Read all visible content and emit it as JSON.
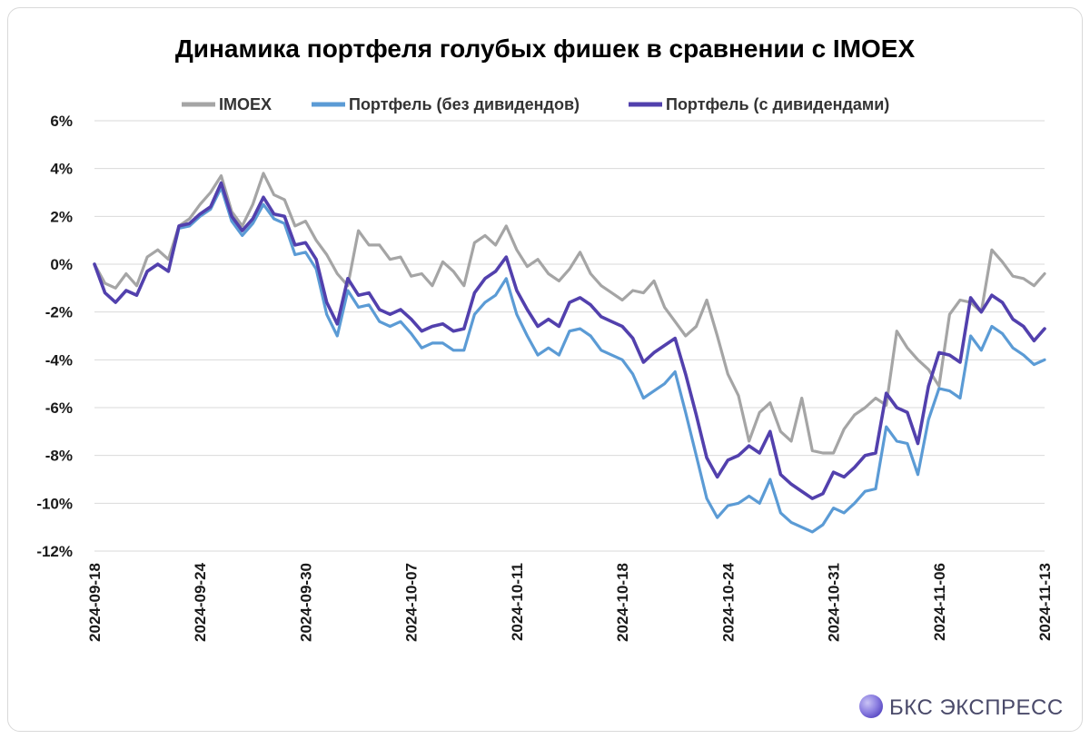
{
  "chart_data": {
    "type": "line",
    "title": "Динамика портфеля голубых фишек в сравнении с IMOEX",
    "xlabel": "",
    "ylabel": "",
    "ylim": [
      -12,
      6
    ],
    "yticks": [
      6,
      4,
      2,
      0,
      -2,
      -4,
      -6,
      -8,
      -10,
      -12
    ],
    "ytick_labels": [
      "6%",
      "4%",
      "2%",
      "0%",
      "-2%",
      "-4%",
      "-6%",
      "-8%",
      "-10%",
      "-12%"
    ],
    "xtick_labels": [
      "2024-09-18",
      "2024-09-24",
      "2024-09-30",
      "2024-10-07",
      "2024-10-11",
      "2024-10-18",
      "2024-10-24",
      "2024-10-31",
      "2024-11-06",
      "2024-11-13"
    ],
    "grid": true,
    "legend_position": "top-center",
    "series": [
      {
        "name": "IMOEX",
        "color": "#a5a5a5",
        "values": [
          0,
          -0.8,
          -1.0,
          -0.4,
          -0.9,
          0.3,
          0.6,
          0.2,
          1.6,
          1.9,
          2.5,
          3.0,
          3.7,
          2.2,
          1.6,
          2.5,
          3.8,
          2.9,
          2.7,
          1.6,
          1.8,
          1.0,
          0.4,
          -0.4,
          -0.9,
          1.4,
          0.8,
          0.8,
          0.2,
          0.3,
          -0.5,
          -0.4,
          -0.9,
          0.1,
          -0.3,
          -0.9,
          0.9,
          1.2,
          0.8,
          1.6,
          0.6,
          -0.1,
          0.2,
          -0.4,
          -0.7,
          -0.2,
          0.5,
          -0.4,
          -0.9,
          -1.2,
          -1.5,
          -1.1,
          -1.2,
          -0.7,
          -1.8,
          -2.4,
          -3.0,
          -2.6,
          -1.5,
          -3.0,
          -4.6,
          -5.5,
          -7.4,
          -6.2,
          -5.8,
          -7.0,
          -7.4,
          -5.6,
          -7.8,
          -7.9,
          -7.9,
          -6.9,
          -6.3,
          -6.0,
          -5.6,
          -5.9,
          -2.8,
          -3.5,
          -4.0,
          -4.4,
          -5.1,
          -2.1,
          -1.5,
          -1.6,
          -2.0,
          0.6,
          0.1,
          -0.5,
          -0.6,
          -0.9,
          -0.4
        ]
      },
      {
        "name": "Портфель (без дивидендов)",
        "color": "#5b9bd5",
        "values": [
          0,
          -1.2,
          -1.6,
          -1.1,
          -1.3,
          -0.3,
          0.0,
          -0.3,
          1.5,
          1.6,
          2.0,
          2.3,
          3.2,
          1.8,
          1.2,
          1.7,
          2.5,
          1.9,
          1.7,
          0.4,
          0.5,
          -0.2,
          -2.1,
          -3.0,
          -1.1,
          -1.8,
          -1.7,
          -2.4,
          -2.6,
          -2.4,
          -2.9,
          -3.5,
          -3.3,
          -3.3,
          -3.6,
          -3.6,
          -2.1,
          -1.6,
          -1.3,
          -0.6,
          -2.1,
          -3.0,
          -3.8,
          -3.5,
          -3.8,
          -2.8,
          -2.7,
          -3.0,
          -3.6,
          -3.8,
          -4.0,
          -4.6,
          -5.6,
          -5.3,
          -5.0,
          -4.5,
          -6.2,
          -8.0,
          -9.8,
          -10.6,
          -10.1,
          -10.0,
          -9.7,
          -10.0,
          -9.0,
          -10.4,
          -10.8,
          -11.0,
          -11.2,
          -10.9,
          -10.2,
          -10.4,
          -10.0,
          -9.5,
          -9.4,
          -6.8,
          -7.4,
          -7.5,
          -8.8,
          -6.5,
          -5.2,
          -5.3,
          -5.6,
          -3.0,
          -3.6,
          -2.6,
          -2.9,
          -3.5,
          -3.8,
          -4.2,
          -4.0
        ]
      },
      {
        "name": "Портфель (с дивидендами)",
        "color": "#5240ad",
        "values": [
          0,
          -1.2,
          -1.6,
          -1.1,
          -1.3,
          -0.3,
          0.0,
          -0.3,
          1.6,
          1.7,
          2.1,
          2.4,
          3.4,
          2.0,
          1.4,
          1.9,
          2.8,
          2.1,
          2.0,
          0.8,
          0.9,
          0.2,
          -1.6,
          -2.5,
          -0.6,
          -1.3,
          -1.2,
          -1.9,
          -2.1,
          -1.9,
          -2.3,
          -2.8,
          -2.6,
          -2.5,
          -2.8,
          -2.7,
          -1.2,
          -0.6,
          -0.3,
          0.3,
          -1.1,
          -1.9,
          -2.6,
          -2.3,
          -2.6,
          -1.6,
          -1.4,
          -1.7,
          -2.2,
          -2.4,
          -2.6,
          -3.1,
          -4.1,
          -3.7,
          -3.4,
          -3.1,
          -4.6,
          -6.3,
          -8.1,
          -8.9,
          -8.2,
          -8.0,
          -7.6,
          -7.9,
          -7.0,
          -8.8,
          -9.2,
          -9.5,
          -9.8,
          -9.6,
          -8.7,
          -8.9,
          -8.5,
          -8.0,
          -7.9,
          -5.4,
          -6.0,
          -6.2,
          -7.5,
          -5.1,
          -3.7,
          -3.8,
          -4.1,
          -1.4,
          -2.0,
          -1.3,
          -1.6,
          -2.3,
          -2.6,
          -3.2,
          -2.7
        ]
      }
    ]
  },
  "brand": {
    "name": "БКС ЭКСПРЕСС",
    "logo_color": "#6a5acd"
  }
}
